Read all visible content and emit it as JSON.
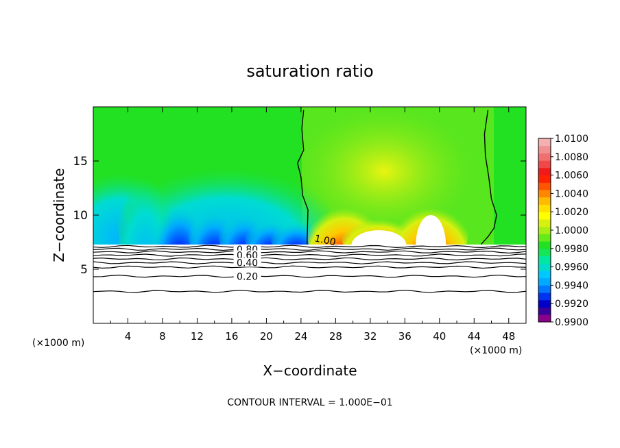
{
  "chart_data": {
    "type": "heatmap",
    "title": "saturation ratio",
    "xlabel": "X−coordinate",
    "ylabel": "Z−coordinate",
    "x_unit": "(×1000 m)",
    "z_unit": "(×1000 m)",
    "xlim": [
      0,
      50
    ],
    "ylim": [
      0,
      20
    ],
    "x_ticks": [
      "4",
      "8",
      "12",
      "16",
      "20",
      "24",
      "28",
      "32",
      "36",
      "40",
      "44",
      "48"
    ],
    "y_ticks": [
      "5",
      "10",
      "15"
    ],
    "grid": false,
    "footer": "CONTOUR INTERVAL = 1.000E−01",
    "colorbar": {
      "placement": "right",
      "labels": [
        "1.0100",
        "1.0080",
        "1.0060",
        "1.0040",
        "1.0020",
        "1.0000",
        "0.9980",
        "0.9960",
        "0.9940",
        "0.9920",
        "0.9900"
      ],
      "colors": [
        "#8b008b",
        "#3a0099",
        "#0000c8",
        "#0033f0",
        "#0077ff",
        "#00aaff",
        "#00c8ff",
        "#00dcc8",
        "#00e8a0",
        "#14e658",
        "#22e022",
        "#66ea18",
        "#a8ee14",
        "#d8f010",
        "#ffff00",
        "#ffe000",
        "#ffbb00",
        "#ff8800",
        "#ff5500",
        "#ff2200",
        "#f01a1a",
        "#f04848",
        "#f07070",
        "#f09090",
        "#f4b0b0"
      ]
    },
    "contour_labels": [
      "0.80",
      "0.60",
      "0.40",
      "0.20",
      "1.00"
    ],
    "contours": [
      {
        "level": 1.0,
        "points": [
          [
            24.7,
            7.3
          ],
          [
            24.8,
            10.5
          ],
          [
            24.2,
            11.8
          ],
          [
            24.0,
            13.5
          ],
          [
            23.6,
            14.8
          ],
          [
            24.3,
            16.0
          ],
          [
            24.1,
            18.0
          ],
          [
            24.3,
            19.7
          ]
        ]
      },
      {
        "level": 1.0,
        "points": [
          [
            44.8,
            7.3
          ],
          [
            45.6,
            8.0
          ],
          [
            46.3,
            8.8
          ],
          [
            46.6,
            10.0
          ],
          [
            46.0,
            11.5
          ],
          [
            45.7,
            13.5
          ],
          [
            45.3,
            15.5
          ],
          [
            45.2,
            17.5
          ],
          [
            45.6,
            19.7
          ]
        ]
      }
    ],
    "lower_lines": [
      7.1,
      6.85,
      6.6,
      6.3,
      5.95,
      5.6,
      5.2,
      4.35,
      2.95
    ],
    "cloud_free_top": 7.2,
    "blob_centers_x": [
      6,
      10,
      14,
      17.5,
      20.5,
      23.5,
      29,
      33,
      39
    ],
    "blob_heights_z": [
      14.0,
      12.0,
      11.2,
      11.0,
      10.2,
      10.0,
      11.5,
      10.2,
      11.5
    ]
  }
}
